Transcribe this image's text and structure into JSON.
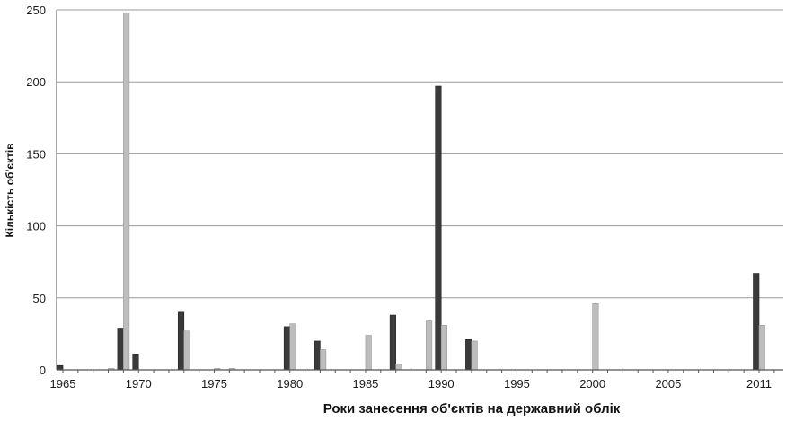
{
  "colors": {
    "series_dark": "#3a3a3a",
    "series_light": "#bdbdbd",
    "grid": "#9a9a9a",
    "axis": "#555555"
  },
  "chart_data": {
    "type": "bar",
    "title": "",
    "xlabel": "Роки занесення об'єктів на державний облік",
    "ylabel": "Кількість об'єктів",
    "xlim": [
      1965,
      2012
    ],
    "ylim": [
      0,
      250
    ],
    "x_ticks": [
      1965,
      1970,
      1975,
      1980,
      1985,
      1990,
      1995,
      2000,
      2005,
      2011
    ],
    "y_ticks": [
      0,
      50,
      100,
      150,
      200,
      250
    ],
    "grid": true,
    "legend": "none",
    "series": [
      {
        "color": "#3a3a3a",
        "points": [
          {
            "x": 1965,
            "y": 3
          },
          {
            "x": 1969,
            "y": 29
          },
          {
            "x": 1970,
            "y": 11
          },
          {
            "x": 1973,
            "y": 40
          },
          {
            "x": 1980,
            "y": 30
          },
          {
            "x": 1982,
            "y": 20
          },
          {
            "x": 1987,
            "y": 38
          },
          {
            "x": 1990,
            "y": 197
          },
          {
            "x": 1992,
            "y": 21
          },
          {
            "x": 2011,
            "y": 67
          }
        ]
      },
      {
        "color": "#bdbdbd",
        "points": [
          {
            "x": 1968,
            "y": 1
          },
          {
            "x": 1969,
            "y": 248
          },
          {
            "x": 1973,
            "y": 27
          },
          {
            "x": 1975,
            "y": 1
          },
          {
            "x": 1976,
            "y": 1
          },
          {
            "x": 1980,
            "y": 32
          },
          {
            "x": 1982,
            "y": 14
          },
          {
            "x": 1985,
            "y": 24
          },
          {
            "x": 1987,
            "y": 4
          },
          {
            "x": 1989,
            "y": 34
          },
          {
            "x": 1990,
            "y": 31
          },
          {
            "x": 1992,
            "y": 20
          },
          {
            "x": 2000,
            "y": 46
          },
          {
            "x": 2011,
            "y": 31
          }
        ]
      }
    ]
  }
}
